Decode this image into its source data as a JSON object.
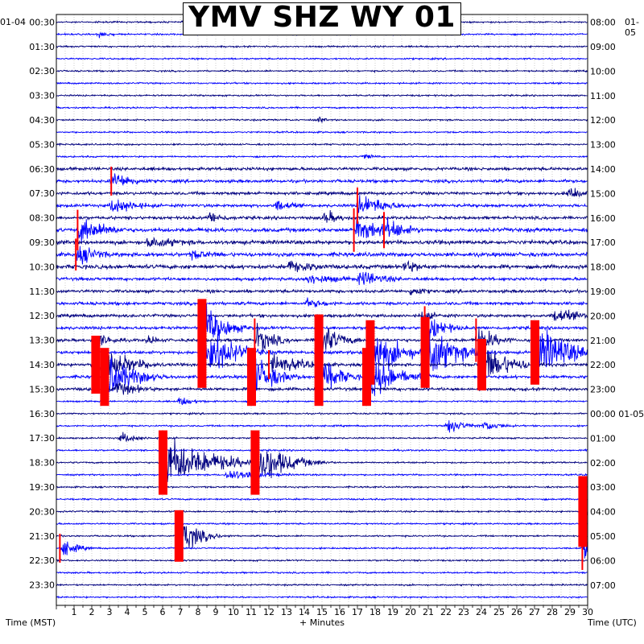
{
  "chart_data": {
    "type": "helicorder",
    "title": "YMV SHZ WY 01",
    "left_date": "01-04",
    "right_date": "01-05",
    "xlabel": "+ Minutes",
    "left_axis_label": "Time (MST)",
    "right_axis_label": "Time (UTC)",
    "xlim": [
      0,
      30
    ],
    "x_ticks": [
      "1",
      "2",
      "3",
      "4",
      "5",
      "6",
      "7",
      "8",
      "9",
      "10",
      "11",
      "12",
      "13",
      "14",
      "15",
      "16",
      "17",
      "18",
      "19",
      "20",
      "21",
      "22",
      "23",
      "24",
      "25",
      "26",
      "27",
      "28",
      "29",
      "30"
    ],
    "row_minutes": 30,
    "row_count": 48,
    "left_time_labels": [
      "00:30",
      "01:30",
      "02:30",
      "03:30",
      "04:30",
      "05:30",
      "06:30",
      "07:30",
      "08:30",
      "09:30",
      "10:30",
      "11:30",
      "12:30",
      "13:30",
      "14:30",
      "15:30",
      "16:30",
      "17:30",
      "18:30",
      "19:30",
      "20:30",
      "21:30",
      "22:30",
      "23:30"
    ],
    "right_time_labels": [
      "08:00",
      "09:00",
      "10:00",
      "11:00",
      "12:00",
      "13:00",
      "14:00",
      "15:00",
      "16:00",
      "17:00",
      "18:00",
      "19:00",
      "20:00",
      "21:00",
      "22:00",
      "23:00",
      "00:00 01-05",
      "01:00",
      "02:00",
      "03:00",
      "04:00",
      "05:00",
      "06:00",
      "07:00"
    ],
    "trace_colors": [
      "#000080",
      "#0000ff"
    ],
    "clip_color": "#ff0000",
    "grid": true,
    "events": [
      {
        "row": 1,
        "minute": 2.3,
        "amp": 10,
        "dur": 0.6
      },
      {
        "row": 8,
        "minute": 14.7,
        "amp": 10,
        "dur": 0.4
      },
      {
        "row": 11,
        "minute": 17.2,
        "amp": 7,
        "dur": 0.8
      },
      {
        "row": 13,
        "minute": 3.1,
        "amp": 20,
        "dur": 1.2
      },
      {
        "row": 14,
        "minute": 28.8,
        "amp": 18,
        "dur": 0.8
      },
      {
        "row": 15,
        "minute": 3.0,
        "amp": 18,
        "dur": 1.5
      },
      {
        "row": 15,
        "minute": 12.3,
        "amp": 14,
        "dur": 1.0
      },
      {
        "row": 15,
        "minute": 17.0,
        "amp": 25,
        "dur": 1.5
      },
      {
        "row": 16,
        "minute": 8.5,
        "amp": 14,
        "dur": 1.0
      },
      {
        "row": 16,
        "minute": 15.0,
        "amp": 16,
        "dur": 1.0
      },
      {
        "row": 17,
        "minute": 1.2,
        "amp": 28,
        "dur": 1.5
      },
      {
        "row": 17,
        "minute": 16.8,
        "amp": 30,
        "dur": 1.5
      },
      {
        "row": 17,
        "minute": 18.5,
        "amp": 25,
        "dur": 1.2
      },
      {
        "row": 18,
        "minute": 5.0,
        "amp": 12,
        "dur": 2.5
      },
      {
        "row": 19,
        "minute": 1.1,
        "amp": 22,
        "dur": 1.2
      },
      {
        "row": 19,
        "minute": 7.5,
        "amp": 12,
        "dur": 1.5
      },
      {
        "row": 20,
        "minute": 13.0,
        "amp": 14,
        "dur": 2.0
      },
      {
        "row": 20,
        "minute": 19.5,
        "amp": 16,
        "dur": 1.0
      },
      {
        "row": 21,
        "minute": 14.0,
        "amp": 12,
        "dur": 2.0
      },
      {
        "row": 21,
        "minute": 17.0,
        "amp": 18,
        "dur": 1.5
      },
      {
        "row": 22,
        "minute": 19.9,
        "amp": 14,
        "dur": 0.8
      },
      {
        "row": 23,
        "minute": 14.0,
        "amp": 10,
        "dur": 1.5
      },
      {
        "row": 24,
        "minute": 20.5,
        "amp": 12,
        "dur": 1.0
      },
      {
        "row": 24,
        "minute": 28.0,
        "amp": 16,
        "dur": 1.5
      },
      {
        "row": 25,
        "minute": 8.2,
        "amp": 45,
        "dur": 1.2
      },
      {
        "row": 25,
        "minute": 20.8,
        "amp": 30,
        "dur": 1.0
      },
      {
        "row": 26,
        "minute": 2.3,
        "amp": 14,
        "dur": 1.0
      },
      {
        "row": 26,
        "minute": 5.0,
        "amp": 10,
        "dur": 1.0
      },
      {
        "row": 26,
        "minute": 11.2,
        "amp": 30,
        "dur": 1.0
      },
      {
        "row": 26,
        "minute": 14.8,
        "amp": 40,
        "dur": 1.0
      },
      {
        "row": 26,
        "minute": 23.7,
        "amp": 30,
        "dur": 1.0
      },
      {
        "row": 27,
        "minute": 8.2,
        "amp": 55,
        "dur": 1.5
      },
      {
        "row": 27,
        "minute": 17.7,
        "amp": 50,
        "dur": 1.5
      },
      {
        "row": 27,
        "minute": 20.8,
        "amp": 55,
        "dur": 1.5
      },
      {
        "row": 27,
        "minute": 27.0,
        "amp": 50,
        "dur": 2.0
      },
      {
        "row": 28,
        "minute": 2.2,
        "amp": 45,
        "dur": 1.5
      },
      {
        "row": 28,
        "minute": 12.0,
        "amp": 20,
        "dur": 2.0
      },
      {
        "row": 28,
        "minute": 24.0,
        "amp": 40,
        "dur": 1.5
      },
      {
        "row": 29,
        "minute": 2.7,
        "amp": 45,
        "dur": 1.5
      },
      {
        "row": 29,
        "minute": 11.0,
        "amp": 45,
        "dur": 1.2
      },
      {
        "row": 29,
        "minute": 14.8,
        "amp": 45,
        "dur": 1.0
      },
      {
        "row": 29,
        "minute": 17.5,
        "amp": 45,
        "dur": 1.5
      },
      {
        "row": 30,
        "minute": 3.2,
        "amp": 16,
        "dur": 1.5
      },
      {
        "row": 31,
        "minute": 6.8,
        "amp": 10,
        "dur": 1.0
      },
      {
        "row": 33,
        "minute": 22.0,
        "amp": 16,
        "dur": 1.0
      },
      {
        "row": 33,
        "minute": 24.0,
        "amp": 12,
        "dur": 1.0
      },
      {
        "row": 34,
        "minute": 3.5,
        "amp": 12,
        "dur": 1.0
      },
      {
        "row": 36,
        "minute": 6.0,
        "amp": 50,
        "dur": 2.5
      },
      {
        "row": 36,
        "minute": 11.2,
        "amp": 50,
        "dur": 1.5
      },
      {
        "row": 37,
        "minute": 9.5,
        "amp": 12,
        "dur": 2.0
      },
      {
        "row": 40,
        "minute": 29.7,
        "amp": 55,
        "dur": 1.0
      },
      {
        "row": 42,
        "minute": 6.9,
        "amp": 40,
        "dur": 1.0
      },
      {
        "row": 43,
        "minute": 0.2,
        "amp": 20,
        "dur": 0.8
      },
      {
        "row": 43,
        "minute": 29.7,
        "amp": 30,
        "dur": 0.8
      }
    ]
  }
}
